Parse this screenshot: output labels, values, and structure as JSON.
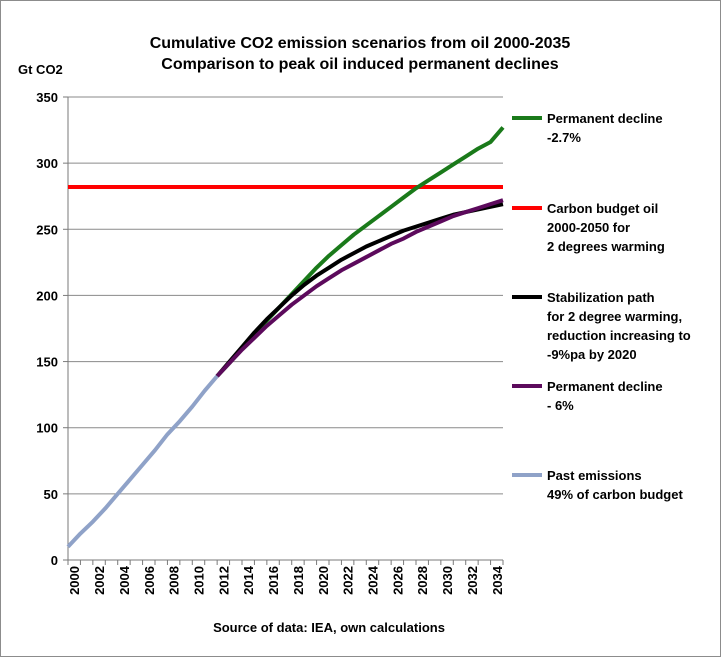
{
  "chart_data": {
    "type": "line",
    "title": "Cumulative CO2 emission scenarios from oil 2000-2035",
    "subtitle": "Comparison to peak oil induced permanent declines",
    "ylabel": "Gt CO2",
    "xlabel": "Source of data: IEA, own calculations",
    "ylim": [
      0,
      350
    ],
    "xlim": [
      2000,
      2035
    ],
    "y_ticks": [
      "0",
      "50",
      "100",
      "150",
      "200",
      "250",
      "300",
      "350"
    ],
    "x_ticks": [
      "2000",
      "2002",
      "2004",
      "2006",
      "2008",
      "2010",
      "2012",
      "2014",
      "2016",
      "2018",
      "2020",
      "2022",
      "2024",
      "2026",
      "2028",
      "2030",
      "2032",
      "2034"
    ],
    "grid": "horizontal",
    "legend_position": "right",
    "series": [
      {
        "name": "Permanent decline -2.7%",
        "legend_lines": [
          "Permanent decline",
          "-2.7%"
        ],
        "color": "#1a7a1a",
        "x": [
          2012,
          2013,
          2014,
          2015,
          2016,
          2017,
          2018,
          2019,
          2020,
          2021,
          2022,
          2023,
          2024,
          2025,
          2026,
          2027,
          2028,
          2029,
          2030,
          2031,
          2032,
          2033,
          2034,
          2035
        ],
        "y": [
          139,
          149,
          160,
          171,
          181,
          191,
          201,
          211,
          221,
          230,
          238,
          246,
          253,
          260,
          267,
          274,
          281,
          287,
          293,
          299,
          305,
          311,
          316,
          327
        ]
      },
      {
        "name": "Carbon budget oil 2000-2050 for 2 degrees warming",
        "legend_lines": [
          "Carbon budget oil",
          "2000-2050 for",
          "2 degrees warming"
        ],
        "color": "#ff0000",
        "x": [
          2000,
          2035
        ],
        "y": [
          282,
          282
        ]
      },
      {
        "name": "Stabilization path for 2 degree warming, reduction increasing to -9%pa by 2020",
        "legend_lines": [
          "Stabilization path",
          "for 2 degree warming,",
          "reduction increasing to",
          "-9%pa by 2020"
        ],
        "color": "#000000",
        "x": [
          2012,
          2013,
          2014,
          2015,
          2016,
          2017,
          2018,
          2019,
          2020,
          2021,
          2022,
          2023,
          2024,
          2025,
          2026,
          2027,
          2028,
          2029,
          2030,
          2031,
          2032,
          2033,
          2034,
          2035
        ],
        "y": [
          139,
          150,
          161,
          172,
          182,
          191,
          200,
          208,
          215,
          221,
          227,
          232,
          237,
          241,
          245,
          249,
          252,
          255,
          258,
          261,
          263,
          265,
          267,
          269
        ]
      },
      {
        "name": "Permanent decline - 6%",
        "legend_lines": [
          "Permanent decline",
          "- 6%"
        ],
        "color": "#5c0a5c",
        "x": [
          2012,
          2013,
          2014,
          2015,
          2016,
          2017,
          2018,
          2019,
          2020,
          2021,
          2022,
          2023,
          2024,
          2025,
          2026,
          2027,
          2028,
          2029,
          2030,
          2031,
          2032,
          2033,
          2034,
          2035
        ],
        "y": [
          139,
          149,
          159,
          168,
          177,
          185,
          193,
          200,
          207,
          213,
          219,
          224,
          229,
          234,
          239,
          243,
          248,
          252,
          256,
          260,
          263,
          266,
          269,
          272
        ]
      },
      {
        "name": "Past emissions 49% of carbon budget",
        "legend_lines": [
          "Past emissions",
          "49% of carbon budget"
        ],
        "color": "#8fa2c8",
        "x": [
          2000,
          2001,
          2002,
          2003,
          2004,
          2005,
          2006,
          2007,
          2008,
          2009,
          2010,
          2011,
          2012
        ],
        "y": [
          10,
          20,
          29,
          39,
          50,
          61,
          72,
          83,
          95,
          105,
          116,
          128,
          139
        ]
      }
    ]
  }
}
